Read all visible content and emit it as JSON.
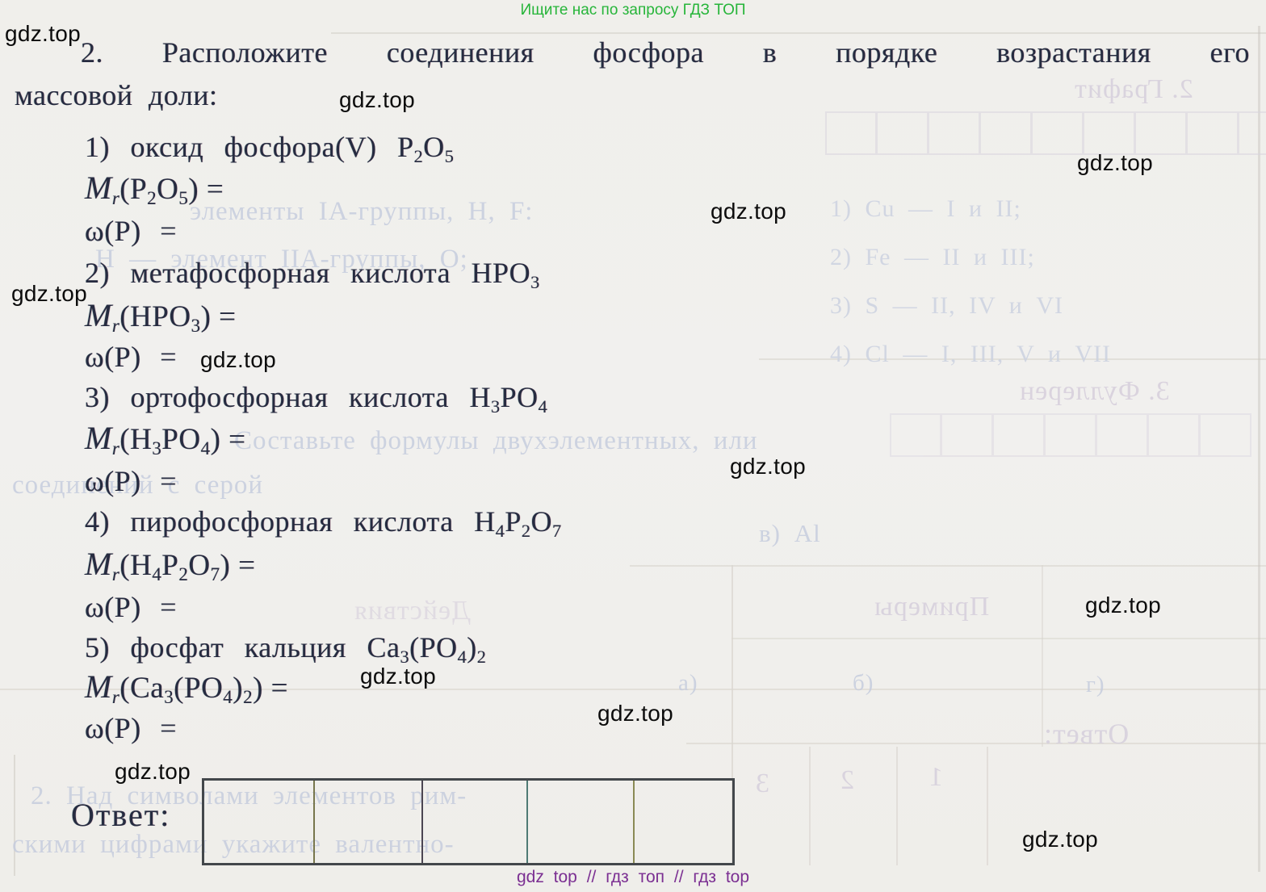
{
  "page": {
    "header_promo": "Ищите нас по запросу ГДЗ ТОП",
    "footer_promo": "gdz top  //  гдз топ  //  гдз top",
    "watermark": "gdz.top"
  },
  "task": {
    "title_line1": "2. Расположите соединения фосфора в порядке возрастания его",
    "title_line2": "массовой доли:",
    "mr_symbol": "M",
    "mr_sub": "r",
    "items": [
      {
        "num": "1)",
        "name": "оксид фосфора(V)",
        "formula": "P~2~O~5~",
        "mr": "(P~2~O~5~) =",
        "omega": "ω(P) ="
      },
      {
        "num": "2)",
        "name": "метафосфорная кислота",
        "formula": "HPO~3~",
        "mr": "(HPO~3~) =",
        "omega": "ω(P) ="
      },
      {
        "num": "3)",
        "name": "ортофосфорная кислота",
        "formula": "H~3~PO~4~",
        "mr": "(H~3~PO~4~) =",
        "omega": "ω(P) ="
      },
      {
        "num": "4)",
        "name": "пирофосфорная кислота",
        "formula": "H~4~P~2~O~7~",
        "mr": "(H~4~P~2~O~7~) =",
        "omega": "ω(P) ="
      },
      {
        "num": "5)",
        "name": "фосфат кальция",
        "formula": "Ca~3~(PO~4~)~2~",
        "mr": "(Ca~3~(PO~4~)~2~) =",
        "omega": "ω(P) ="
      }
    ],
    "answer_label": "Ответ:",
    "answer_cell_count": 5
  },
  "bleedthrough": {
    "left_lines": [
      "элементы IA-группы, H, F:",
      "Н — элемент IIА-группы, О;",
      "Составьте формулы двухэлементных, или",
      "соединений с серой",
      "в) Al",
      "а)",
      "б)",
      "г)",
      "2. Над символами элементов рим-",
      "скими цифрами укажите валентно-"
    ],
    "right_list": [
      "1) Cu — I и II;",
      "2) Fe — II и III;",
      "3) S — II, IV и VI",
      "4) Cl — I, III, V и VII"
    ],
    "mirrored": {
      "graphite": "2. Графит",
      "fullerene": "3. Фуллерен",
      "actions": "Действия",
      "examples": "Примеры",
      "answer": "Ответ:",
      "digits": [
        "3",
        "2",
        "1"
      ]
    }
  },
  "colors": {
    "ink": "#262b40",
    "promo_green": "#27b53a",
    "promo_purple": "#7b2f92",
    "paper": "#f0efeb",
    "bleed_text": "#c6cdde",
    "table_border": "#43474b"
  }
}
